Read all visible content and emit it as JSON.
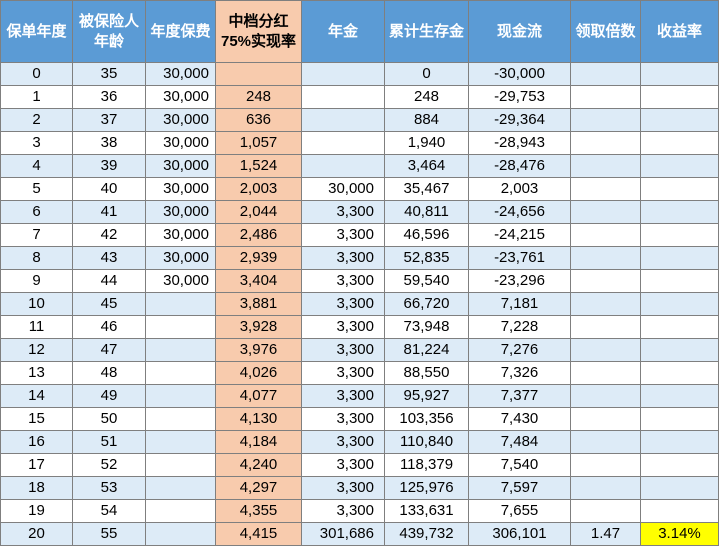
{
  "table": {
    "headers": [
      [
        "保单年度"
      ],
      [
        "被保险人",
        "年龄"
      ],
      [
        "年度保费"
      ],
      [
        "中档分红",
        "75%实现率"
      ],
      [
        "年金"
      ],
      [
        "累计生存金"
      ],
      [
        "现金流"
      ],
      [
        "领取倍数"
      ],
      [
        "收益率"
      ]
    ],
    "rows": [
      [
        "0",
        "35",
        "30,000",
        "",
        "",
        "0",
        "-30,000",
        "",
        ""
      ],
      [
        "1",
        "36",
        "30,000",
        "248",
        "",
        "248",
        "-29,753",
        "",
        ""
      ],
      [
        "2",
        "37",
        "30,000",
        "636",
        "",
        "884",
        "-29,364",
        "",
        ""
      ],
      [
        "3",
        "38",
        "30,000",
        "1,057",
        "",
        "1,940",
        "-28,943",
        "",
        ""
      ],
      [
        "4",
        "39",
        "30,000",
        "1,524",
        "",
        "3,464",
        "-28,476",
        "",
        ""
      ],
      [
        "5",
        "40",
        "30,000",
        "2,003",
        "30,000",
        "35,467",
        "2,003",
        "",
        ""
      ],
      [
        "6",
        "41",
        "30,000",
        "2,044",
        "3,300",
        "40,811",
        "-24,656",
        "",
        ""
      ],
      [
        "7",
        "42",
        "30,000",
        "2,486",
        "3,300",
        "46,596",
        "-24,215",
        "",
        ""
      ],
      [
        "8",
        "43",
        "30,000",
        "2,939",
        "3,300",
        "52,835",
        "-23,761",
        "",
        ""
      ],
      [
        "9",
        "44",
        "30,000",
        "3,404",
        "3,300",
        "59,540",
        "-23,296",
        "",
        ""
      ],
      [
        "10",
        "45",
        "",
        "3,881",
        "3,300",
        "66,720",
        "7,181",
        "",
        ""
      ],
      [
        "11",
        "46",
        "",
        "3,928",
        "3,300",
        "73,948",
        "7,228",
        "",
        ""
      ],
      [
        "12",
        "47",
        "",
        "3,976",
        "3,300",
        "81,224",
        "7,276",
        "",
        ""
      ],
      [
        "13",
        "48",
        "",
        "4,026",
        "3,300",
        "88,550",
        "7,326",
        "",
        ""
      ],
      [
        "14",
        "49",
        "",
        "4,077",
        "3,300",
        "95,927",
        "7,377",
        "",
        ""
      ],
      [
        "15",
        "50",
        "",
        "4,130",
        "3,300",
        "103,356",
        "7,430",
        "",
        ""
      ],
      [
        "16",
        "51",
        "",
        "4,184",
        "3,300",
        "110,840",
        "7,484",
        "",
        ""
      ],
      [
        "17",
        "52",
        "",
        "4,240",
        "3,300",
        "118,379",
        "7,540",
        "",
        ""
      ],
      [
        "18",
        "53",
        "",
        "4,297",
        "3,300",
        "125,976",
        "7,597",
        "",
        ""
      ],
      [
        "19",
        "54",
        "",
        "4,355",
        "3,300",
        "133,631",
        "7,655",
        "",
        ""
      ],
      [
        "20",
        "55",
        "",
        "4,415",
        "301,686",
        "439,732",
        "306,101",
        "1.47",
        "3.14%"
      ]
    ]
  },
  "colors": {
    "header": "#5b9bd5",
    "highlight_column": "#f8cbad",
    "row_band": "#ddebf7",
    "highlight_cell": "#ffff00"
  }
}
